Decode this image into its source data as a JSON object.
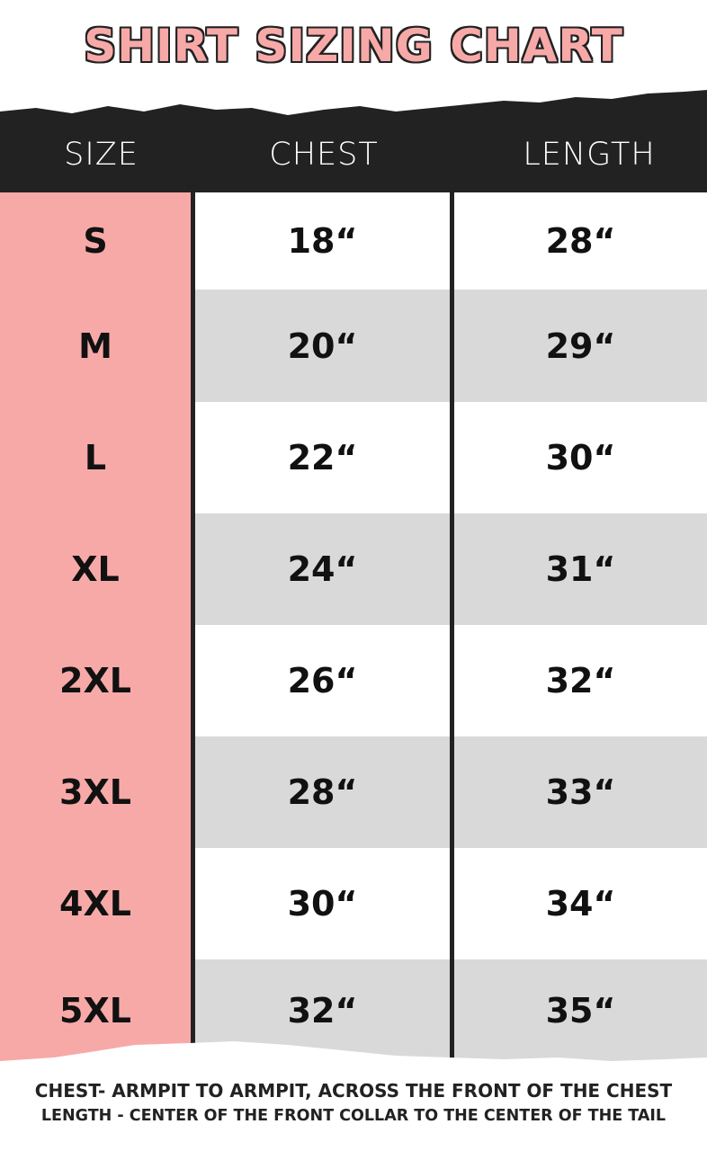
{
  "title": "SHIRT SIZING CHART",
  "colors": {
    "pink": "#f7a9a8",
    "dark": "#222222",
    "stripe": "#d9d9d9"
  },
  "headers": {
    "size": "SIZE",
    "chest": "CHEST",
    "length": "LENGTH"
  },
  "rows": [
    {
      "size": "S",
      "chest": "18“",
      "length": "28“"
    },
    {
      "size": "M",
      "chest": "20“",
      "length": "29“"
    },
    {
      "size": "L",
      "chest": "22“",
      "length": "30“"
    },
    {
      "size": "XL",
      "chest": "24“",
      "length": "31“"
    },
    {
      "size": "2XL",
      "chest": "26“",
      "length": "32“"
    },
    {
      "size": "3XL",
      "chest": "28“",
      "length": "33“"
    },
    {
      "size": "4XL",
      "chest": "30“",
      "length": "34“"
    },
    {
      "size": "5XL",
      "chest": "32“",
      "length": "35“"
    }
  ],
  "notes": {
    "chest": "CHEST- ARMPIT TO ARMPIT, ACROSS THE FRONT OF THE CHEST",
    "length": "LENGTH - CENTER OF THE FRONT COLLAR TO THE CENTER OF THE TAIL"
  }
}
